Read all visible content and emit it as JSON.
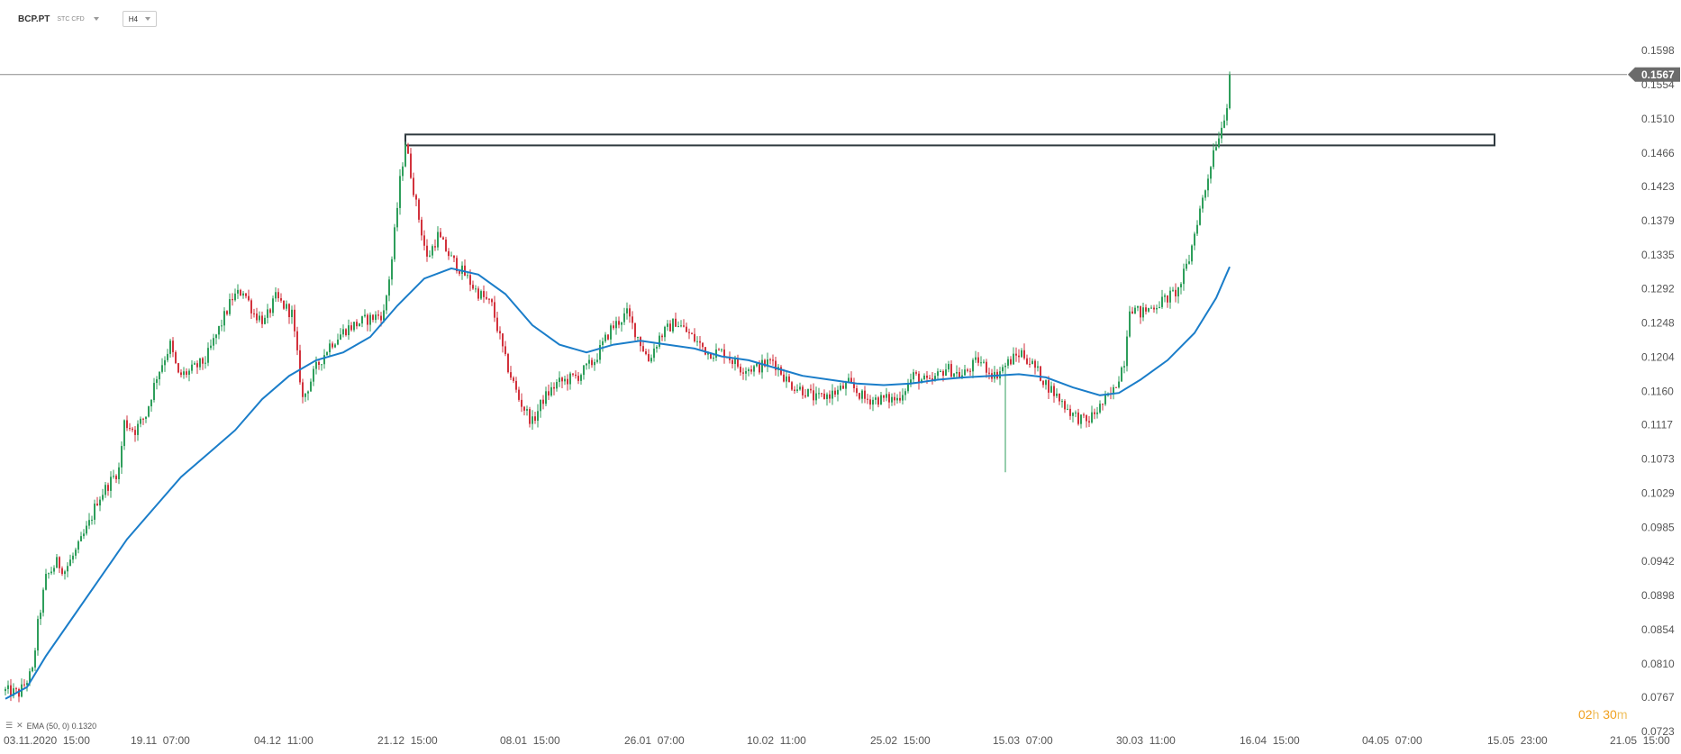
{
  "toolbar": {
    "symbol": "BCP.PT",
    "instrument_type": "STC CFD",
    "timeframe": "H4"
  },
  "indicator": {
    "label": "EMA (50, 0) 0.1320"
  },
  "timer": {
    "hours": "02",
    "h_unit": "h",
    "minutes": "30",
    "m_unit": "m"
  },
  "colors": {
    "bull": "#2e9e5b",
    "bear": "#d2323c",
    "ema": "#1a7dc9",
    "price_tag": "#6b6b6b",
    "grid_line": "#8a8a8a",
    "zone_border": "#2f3a3f"
  },
  "chart_data": {
    "type": "candlestick",
    "title": "",
    "ylim": [
      0.0723,
      0.1598
    ],
    "y_ticks": [
      "0.1598",
      "0.1554",
      "0.1510",
      "0.1466",
      "0.1423",
      "0.1379",
      "0.1335",
      "0.1292",
      "0.1248",
      "0.1204",
      "0.1160",
      "0.1117",
      "0.1073",
      "0.1029",
      "0.0985",
      "0.0942",
      "0.0898",
      "0.0854",
      "0.0810",
      "0.0767",
      "0.0723"
    ],
    "x_ticks": [
      "03.11.2020  15:00",
      "19.11  07:00",
      "04.12  11:00",
      "21.12  15:00",
      "08.01  15:00",
      "26.01  07:00",
      "10.02  11:00",
      "25.02  15:00",
      "15.03  07:00",
      "30.03  11:00",
      "16.04  15:00",
      "04.05  07:00",
      "15.05  23:00",
      "21.05  15:00"
    ],
    "last_price": "0.1567",
    "resistance_zone": [
      0.1476,
      0.149
    ],
    "close_path": [
      [
        0,
        0.0775
      ],
      [
        5,
        0.0772
      ],
      [
        10,
        0.08
      ],
      [
        12,
        0.086
      ],
      [
        15,
        0.092
      ],
      [
        19,
        0.094
      ],
      [
        22,
        0.093
      ],
      [
        27,
        0.096
      ],
      [
        31,
        0.099
      ],
      [
        34,
        0.102
      ],
      [
        38,
        0.104
      ],
      [
        42,
        0.106
      ],
      [
        44,
        0.112
      ],
      [
        48,
        0.111
      ],
      [
        52,
        0.113
      ],
      [
        56,
        0.118
      ],
      [
        61,
        0.122
      ],
      [
        64,
        0.118
      ],
      [
        68,
        0.1185
      ],
      [
        74,
        0.12
      ],
      [
        79,
        0.124
      ],
      [
        84,
        0.128
      ],
      [
        88,
        0.129
      ],
      [
        92,
        0.126
      ],
      [
        96,
        0.125
      ],
      [
        100,
        0.128
      ],
      [
        106,
        0.126
      ],
      [
        110,
        0.115
      ],
      [
        115,
        0.119
      ],
      [
        120,
        0.122
      ],
      [
        126,
        0.124
      ],
      [
        132,
        0.125
      ],
      [
        140,
        0.126
      ],
      [
        143,
        0.133
      ],
      [
        146,
        0.143
      ],
      [
        148,
        0.148
      ],
      [
        152,
        0.14
      ],
      [
        156,
        0.133
      ],
      [
        160,
        0.136
      ],
      [
        165,
        0.133
      ],
      [
        170,
        0.131
      ],
      [
        174,
        0.129
      ],
      [
        180,
        0.127
      ],
      [
        185,
        0.12
      ],
      [
        190,
        0.115
      ],
      [
        195,
        0.112
      ],
      [
        199,
        0.115
      ],
      [
        204,
        0.117
      ],
      [
        212,
        0.118
      ],
      [
        218,
        0.12
      ],
      [
        224,
        0.124
      ],
      [
        230,
        0.126
      ],
      [
        234,
        0.123
      ],
      [
        238,
        0.12
      ],
      [
        242,
        0.123
      ],
      [
        248,
        0.125
      ],
      [
        254,
        0.123
      ],
      [
        260,
        0.121
      ],
      [
        266,
        0.121
      ],
      [
        272,
        0.119
      ],
      [
        278,
        0.119
      ],
      [
        284,
        0.12
      ],
      [
        290,
        0.117
      ],
      [
        296,
        0.116
      ],
      [
        300,
        0.115
      ],
      [
        308,
        0.116
      ],
      [
        312,
        0.117
      ],
      [
        318,
        0.115
      ],
      [
        324,
        0.115
      ],
      [
        330,
        0.115
      ],
      [
        336,
        0.118
      ],
      [
        342,
        0.117
      ],
      [
        348,
        0.119
      ],
      [
        354,
        0.118
      ],
      [
        360,
        0.12
      ],
      [
        366,
        0.118
      ],
      [
        372,
        0.12
      ],
      [
        376,
        0.121
      ],
      [
        381,
        0.119
      ],
      [
        385,
        0.117
      ],
      [
        390,
        0.115
      ],
      [
        395,
        0.113
      ],
      [
        400,
        0.112
      ],
      [
        405,
        0.114
      ],
      [
        410,
        0.116
      ],
      [
        414,
        0.12
      ],
      [
        416,
        0.127
      ],
      [
        420,
        0.126
      ],
      [
        425,
        0.127
      ],
      [
        430,
        0.128
      ],
      [
        434,
        0.129
      ],
      [
        438,
        0.133
      ],
      [
        441,
        0.138
      ],
      [
        444,
        0.142
      ],
      [
        447,
        0.147
      ],
      [
        450,
        0.15
      ],
      [
        452,
        0.153
      ],
      [
        453,
        0.1567
      ]
    ],
    "ema_series": {
      "name": "EMA (50, 0)",
      "points": [
        [
          0,
          0.0765
        ],
        [
          8,
          0.078
        ],
        [
          15,
          0.082
        ],
        [
          25,
          0.087
        ],
        [
          35,
          0.092
        ],
        [
          45,
          0.097
        ],
        [
          55,
          0.101
        ],
        [
          65,
          0.105
        ],
        [
          75,
          0.108
        ],
        [
          85,
          0.111
        ],
        [
          95,
          0.115
        ],
        [
          105,
          0.118
        ],
        [
          115,
          0.12
        ],
        [
          125,
          0.121
        ],
        [
          135,
          0.123
        ],
        [
          145,
          0.127
        ],
        [
          155,
          0.1305
        ],
        [
          165,
          0.1318
        ],
        [
          175,
          0.131
        ],
        [
          185,
          0.1285
        ],
        [
          195,
          0.1245
        ],
        [
          205,
          0.122
        ],
        [
          215,
          0.121
        ],
        [
          225,
          0.122
        ],
        [
          235,
          0.1225
        ],
        [
          245,
          0.122
        ],
        [
          255,
          0.1215
        ],
        [
          265,
          0.1205
        ],
        [
          275,
          0.12
        ],
        [
          285,
          0.119
        ],
        [
          295,
          0.118
        ],
        [
          305,
          0.1175
        ],
        [
          315,
          0.117
        ],
        [
          325,
          0.1168
        ],
        [
          335,
          0.117
        ],
        [
          345,
          0.1175
        ],
        [
          355,
          0.1178
        ],
        [
          365,
          0.118
        ],
        [
          375,
          0.1182
        ],
        [
          385,
          0.1178
        ],
        [
          395,
          0.1165
        ],
        [
          405,
          0.1155
        ],
        [
          412,
          0.1158
        ],
        [
          420,
          0.1175
        ],
        [
          430,
          0.12
        ],
        [
          440,
          0.1235
        ],
        [
          448,
          0.128
        ],
        [
          453,
          0.132
        ]
      ]
    }
  }
}
